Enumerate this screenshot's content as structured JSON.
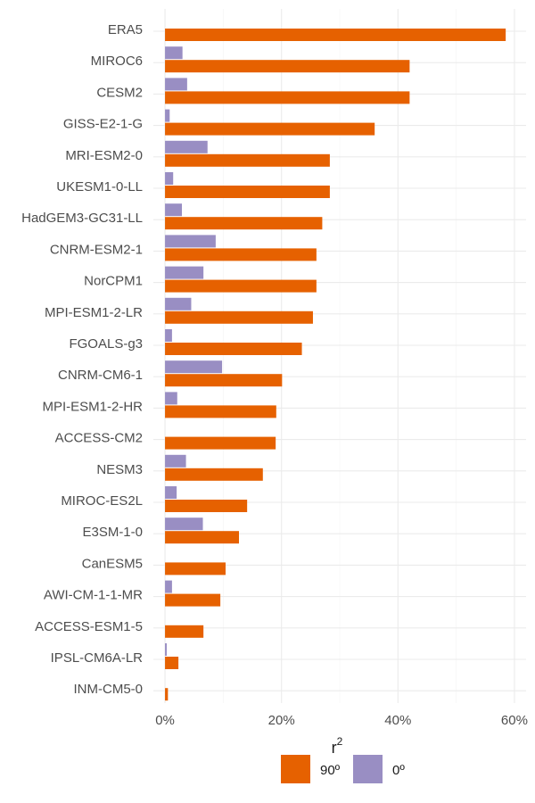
{
  "chart_data": {
    "type": "bar",
    "orientation": "horizontal",
    "categories": [
      "ERA5",
      "MIROC6",
      "CESM2",
      "GISS-E2-1-G",
      "MRI-ESM2-0",
      "UKESM1-0-LL",
      "HadGEM3-GC31-LL",
      "CNRM-ESM2-1",
      "NorCPM1",
      "MPI-ESM1-2-LR",
      "FGOALS-g3",
      "CNRM-CM6-1",
      "MPI-ESM1-2-HR",
      "ACCESS-CM2",
      "NESM3",
      "MIROC-ES2L",
      "E3SM-1-0",
      "CanESM5",
      "AWI-CM-1-1-MR",
      "ACCESS-ESM1-5",
      "IPSL-CM6A-LR",
      "INM-CM5-0"
    ],
    "series": [
      {
        "name": "90º",
        "color": "#e66100",
        "values": [
          58.5,
          42.0,
          42.0,
          36.0,
          28.3,
          28.3,
          27.0,
          26.0,
          26.0,
          25.4,
          23.5,
          20.1,
          19.1,
          19.0,
          16.8,
          14.1,
          12.7,
          10.4,
          9.5,
          6.6,
          2.3,
          0.5
        ]
      },
      {
        "name": "0º",
        "color": "#998ec3",
        "values": [
          null,
          3.0,
          3.8,
          0.8,
          7.3,
          1.4,
          2.9,
          8.7,
          6.6,
          4.5,
          1.2,
          9.8,
          2.1,
          0.0,
          3.6,
          2.0,
          6.5,
          0.0,
          1.2,
          0.0,
          0.3,
          null
        ]
      }
    ],
    "xlim": [
      -2,
      62
    ],
    "xticks": [
      0,
      20,
      40,
      60
    ],
    "xtick_labels": [
      "0%",
      "20%",
      "40%",
      "60%"
    ],
    "xlabel": "",
    "ylabel": "",
    "grid": true,
    "legend": {
      "title": "r",
      "title_superscript": "2",
      "position": "bottom",
      "entries": [
        "90º",
        "0º"
      ]
    }
  }
}
